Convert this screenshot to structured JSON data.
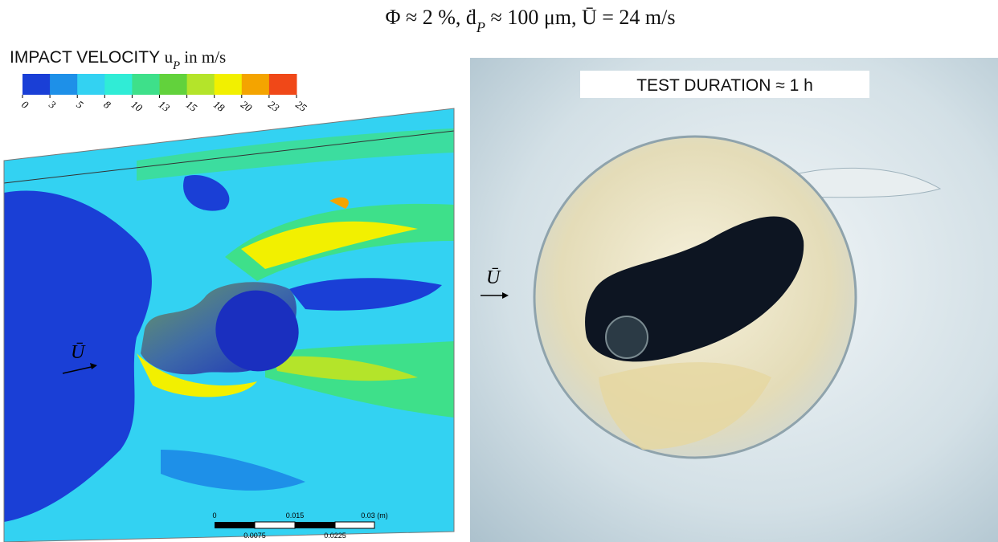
{
  "title": {
    "segments": [
      {
        "text": "Φ ≈ 2 %, "
      },
      {
        "text": "ḋ"
      },
      {
        "text": "P",
        "sub": true
      },
      {
        "text": " ≈ 100 μm, "
      },
      {
        "text": "Ū"
      },
      {
        "text": " = 24 m/s"
      }
    ]
  },
  "simulation": {
    "legend_title": {
      "segments": [
        {
          "text": "IMPACT  VELOCITY "
        },
        {
          "text": "u"
        },
        {
          "text": "P",
          "sub": true
        },
        {
          "text": " in m/s"
        }
      ]
    },
    "colorbar": {
      "ticks": [
        0,
        3,
        5,
        8,
        10,
        13,
        15,
        18,
        20,
        23,
        25
      ],
      "colors": [
        "#1a3fd6",
        "#1e90e8",
        "#33d2f2",
        "#30ecd6",
        "#3ee08a",
        "#62d23c",
        "#b4e42a",
        "#f2f000",
        "#f4a400",
        "#f04818"
      ]
    },
    "flow_label": "Ū",
    "scale_bar": {
      "top_labels": [
        "0",
        "0.015",
        "0.03  (m)"
      ],
      "bottom_labels": [
        "0.0075",
        "0.0225"
      ]
    }
  },
  "photo": {
    "label": "TEST DURATION  ≈ 1 h",
    "flow_label": "Ū"
  }
}
